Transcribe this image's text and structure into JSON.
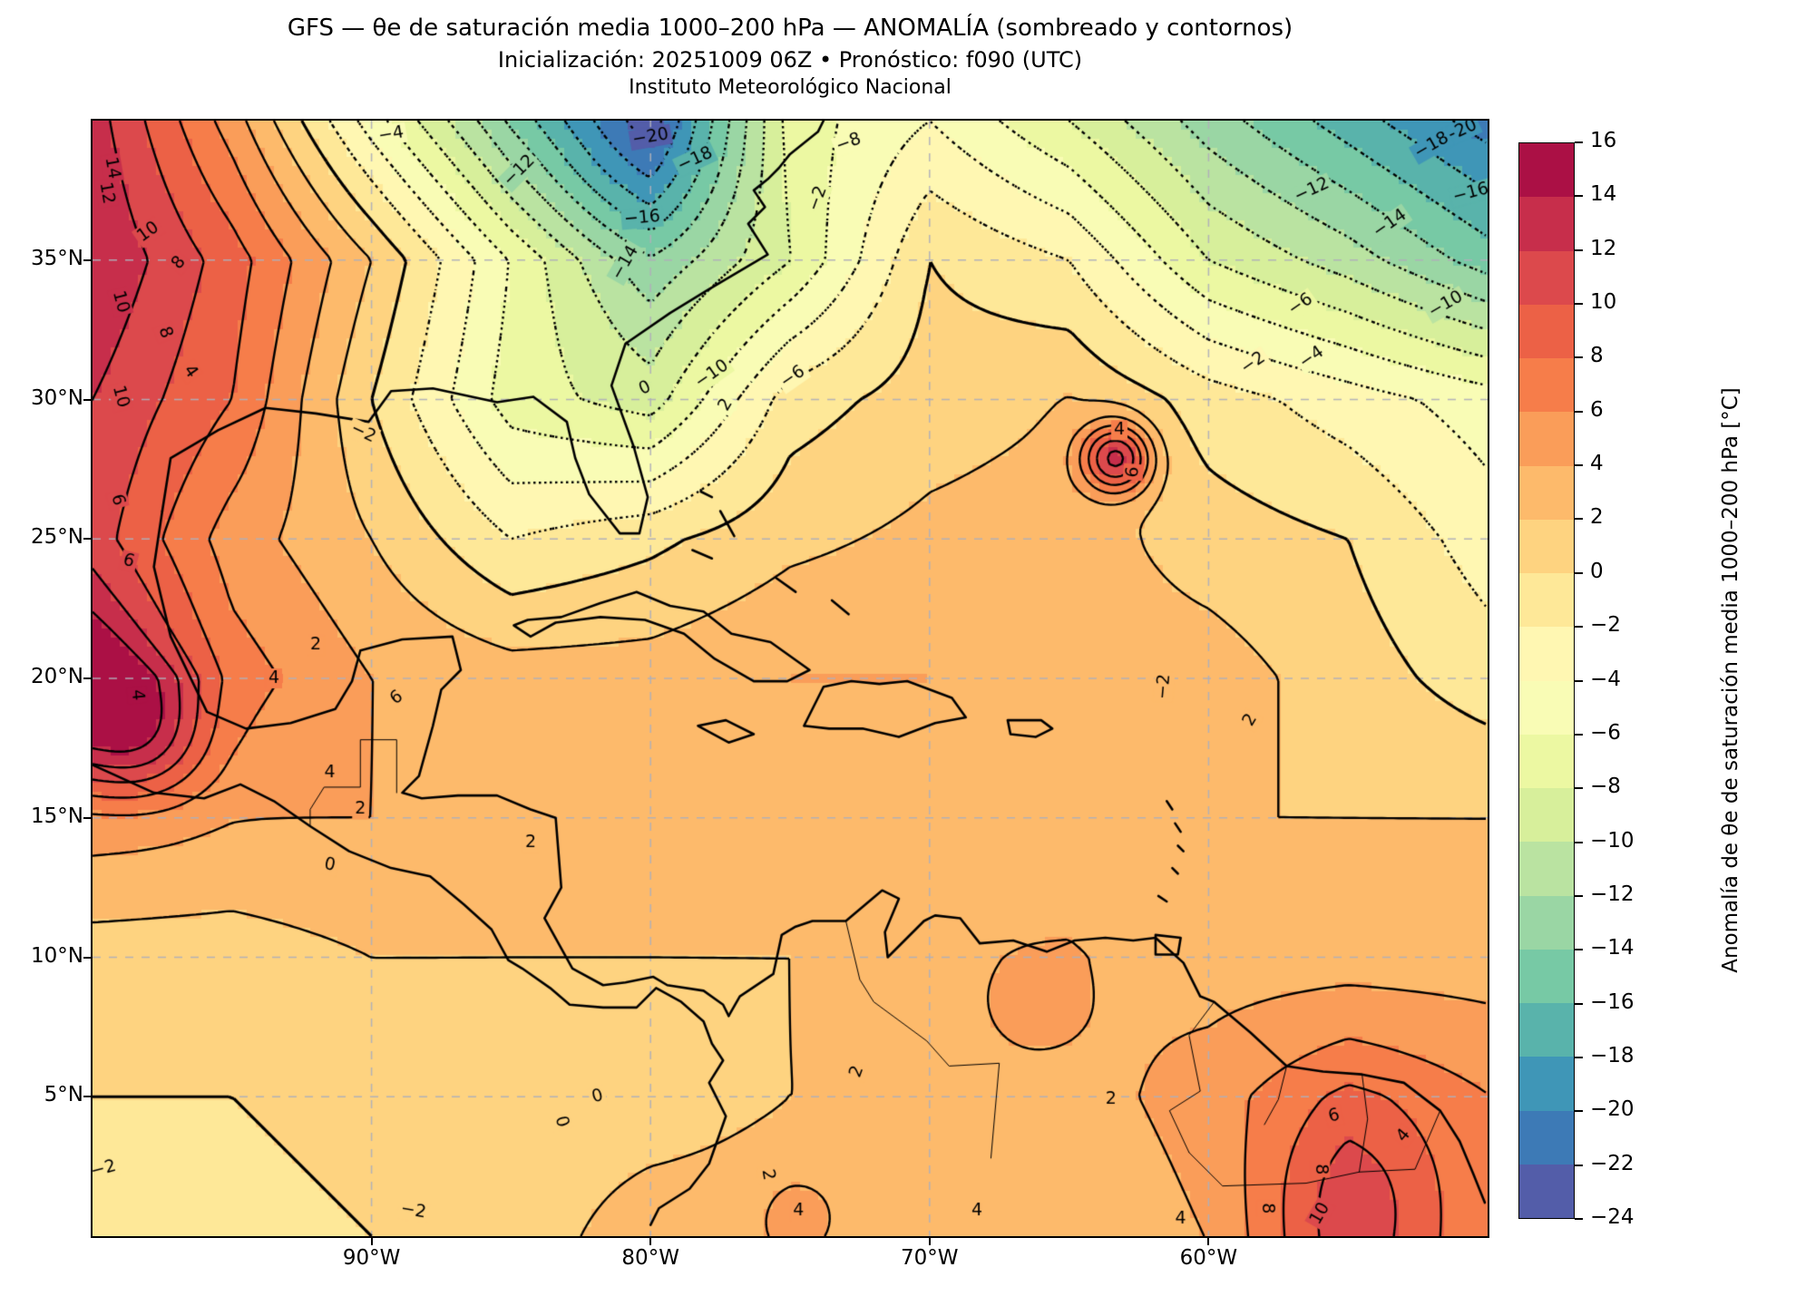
{
  "title": {
    "line1": "GFS — θe de saturación media 1000–200 hPa — ANOMALÍA (sombreado y contornos)",
    "line2": "Inicialización: 20251009 06Z   •   Pronóstico: f090 (UTC)",
    "line3": "Instituto Meteorológico Nacional"
  },
  "axes": {
    "y_ticks": [
      {
        "label": "35°N",
        "lat": 35
      },
      {
        "label": "30°N",
        "lat": 30
      },
      {
        "label": "25°N",
        "lat": 25
      },
      {
        "label": "20°N",
        "lat": 20
      },
      {
        "label": "15°N",
        "lat": 15
      },
      {
        "label": "10°N",
        "lat": 10
      },
      {
        "label": "5°N",
        "lat": 5
      }
    ],
    "x_ticks": [
      {
        "label": "90°W",
        "lon": -90
      },
      {
        "label": "80°W",
        "lon": -80
      },
      {
        "label": "70°W",
        "lon": -70
      },
      {
        "label": "60°W",
        "lon": -60
      }
    ]
  },
  "colorbar": {
    "label": "Anomalía de θe de saturación media 1000–200 hPa [°C]",
    "min": -24,
    "max": 16,
    "step": 2,
    "tick_values": [
      16,
      14,
      12,
      10,
      8,
      6,
      4,
      2,
      0,
      -2,
      -4,
      -6,
      -8,
      -10,
      -12,
      -14,
      -16,
      -18,
      -20,
      -22,
      -24
    ],
    "segment_colors_low_to_high": [
      "#535DA9",
      "#3D7AB6",
      "#3F96B7",
      "#59B3AB",
      "#77C9A5",
      "#9AD6A4",
      "#BAE3A1",
      "#D7EF9B",
      "#ECF8A2",
      "#F9FCB5",
      "#FFF7B2",
      "#FEE898",
      "#FED380",
      "#FDBA6B",
      "#FA9D59",
      "#F67D4A",
      "#EC6146",
      "#DC494C",
      "#C72E4B",
      "#AB1045"
    ]
  },
  "chart_data": {
    "type": "heatmap",
    "title": "GFS — θe de saturación media 1000–200 hPa — ANOMALÍA (sombreado y contornos)",
    "units": "°C",
    "model": "GFS",
    "initialization": "20251009 06Z",
    "forecast_hour": "f090 (UTC)",
    "source": "Instituto Meteorológico Nacional",
    "lon_range": [
      -100,
      -50
    ],
    "lat_range": [
      0,
      40
    ],
    "value_range": [
      -24,
      16
    ],
    "contour_interval": 2,
    "grid": {
      "lons": [
        -100,
        -95,
        -90,
        -85,
        -80,
        -75,
        -70,
        -65,
        -60,
        -55,
        -50
      ],
      "lats": [
        40,
        35,
        30,
        25,
        20,
        15,
        10,
        5,
        0
      ],
      "values": [
        [
          13,
          5,
          -5,
          -14,
          -21,
          -7,
          -4,
          -8,
          -13,
          -17,
          -21
        ],
        [
          14,
          9,
          2,
          -6,
          -13,
          -8,
          0,
          -2,
          -8,
          -11,
          -15
        ],
        [
          12,
          8,
          0,
          -7,
          -9,
          -1,
          1,
          2,
          -1,
          -3,
          -5
        ],
        [
          11,
          5,
          2,
          -2,
          -0.5,
          1.5,
          2.5,
          3,
          1,
          0,
          -3
        ],
        [
          15,
          7,
          4,
          3,
          3,
          4,
          4,
          3,
          3,
          1,
          -1
        ],
        [
          5,
          4,
          4,
          3,
          3,
          3,
          3,
          3,
          2,
          2,
          2
        ],
        [
          1,
          1,
          2,
          2,
          2,
          2,
          3,
          4,
          3,
          3,
          3
        ],
        [
          0,
          0,
          1,
          1,
          1,
          2,
          2,
          3,
          5,
          8,
          6
        ],
        [
          -1,
          -1,
          0,
          1,
          3,
          3,
          2,
          2,
          4,
          10,
          6
        ]
      ]
    },
    "features": [
      {
        "name": "tropical-cyclone",
        "lon": -63.3,
        "lat": 27.9,
        "amplitude": 11,
        "radius_deg": 0.9
      },
      {
        "name": "mexico-hotspot",
        "lon": -98.2,
        "lat": 17.9,
        "amplitude": 5,
        "radius_deg": 1.6
      },
      {
        "name": "west-edge-hotspot",
        "lon": -100.6,
        "lat": 19.6,
        "amplitude": 3,
        "radius_deg": 1.8
      },
      {
        "name": "midatlantic-cold-core",
        "lon": -80.5,
        "lat": 38.8,
        "amplitude": -2.5,
        "radius_deg": 2.5
      },
      {
        "name": "south-america-hotspot",
        "lon": -54.6,
        "lat": 1.6,
        "amplitude": 2,
        "radius_deg": 2.2
      },
      {
        "name": "colombia-spot",
        "lon": -74.6,
        "lat": 0.8,
        "amplitude": 2,
        "radius_deg": 1.2
      },
      {
        "name": "venezuela-spot",
        "lon": -66.4,
        "lat": 8.2,
        "amplitude": 2,
        "radius_deg": 1.2
      }
    ],
    "gridlines": {
      "lats": [
        35,
        30,
        25,
        20,
        15,
        10,
        5
      ],
      "lons": [
        -90,
        -80,
        -70,
        -60
      ]
    },
    "contour_labels": [
      [
        14,
        -99.3,
        38.3,
        80
      ],
      [
        12,
        -99.5,
        37.4,
        80
      ],
      [
        10,
        -98.0,
        36.0,
        -35
      ],
      [
        8,
        -96.9,
        34.9,
        -50
      ],
      [
        10,
        -99.0,
        33.5,
        75
      ],
      [
        8,
        -97.4,
        32.4,
        70
      ],
      [
        4,
        -96.5,
        31.0,
        55
      ],
      [
        10,
        -99.0,
        30.1,
        75
      ],
      [
        6,
        -99.1,
        26.4,
        75
      ],
      [
        6,
        -98.7,
        24.2,
        15
      ],
      [
        4,
        -98.4,
        19.4,
        85
      ],
      [
        4,
        -93.5,
        20.0,
        0
      ],
      [
        6,
        -89.1,
        19.3,
        -35
      ],
      [
        2,
        -92.0,
        21.2,
        0
      ],
      [
        4,
        -91.5,
        16.6,
        0
      ],
      [
        2,
        -90.4,
        15.3,
        0
      ],
      [
        0,
        -91.5,
        13.3,
        10
      ],
      [
        2,
        -84.3,
        14.1,
        0
      ],
      [
        0,
        -80.2,
        30.4,
        -25
      ],
      [
        2,
        -77.3,
        29.8,
        -60
      ],
      [
        0,
        -81.9,
        5.0,
        -15
      ],
      [
        0,
        -83.2,
        4.1,
        75
      ],
      [
        2,
        -72.6,
        5.9,
        -70
      ],
      [
        2,
        -75.8,
        2.2,
        80
      ],
      [
        4,
        -74.7,
        0.9,
        0
      ],
      [
        4,
        -68.3,
        0.9,
        0
      ],
      [
        2,
        -63.5,
        4.9,
        0
      ],
      [
        6,
        -55.5,
        4.3,
        -15
      ],
      [
        4,
        -53.0,
        3.6,
        -50
      ],
      [
        8,
        -56.0,
        2.4,
        90
      ],
      [
        10,
        -56.0,
        0.8,
        -60
      ],
      [
        8,
        -57.9,
        1.0,
        90
      ],
      [
        4,
        -61.0,
        0.6,
        0
      ],
      [
        4,
        -63.2,
        28.9,
        0
      ],
      [
        6,
        -62.7,
        27.4,
        -85
      ],
      [
        2,
        -58.5,
        18.5,
        -60
      ],
      [
        -20,
        -80.0,
        39.4,
        -10
      ],
      [
        -18,
        -78.4,
        38.6,
        -25
      ],
      [
        -16,
        -80.3,
        36.5,
        -5
      ],
      [
        -14,
        -80.9,
        34.9,
        -60
      ],
      [
        -12,
        -84.7,
        38.2,
        -45
      ],
      [
        -10,
        -77.8,
        30.9,
        -35
      ],
      [
        -6,
        -74.9,
        30.8,
        -35
      ],
      [
        -8,
        -72.9,
        39.2,
        -20
      ],
      [
        -2,
        -74.0,
        37.2,
        -70
      ],
      [
        -4,
        -89.3,
        39.5,
        -10
      ],
      [
        -2,
        -90.3,
        28.8,
        25
      ],
      [
        -20,
        -51.0,
        39.6,
        -25
      ],
      [
        -18,
        -52.0,
        39.1,
        -30
      ],
      [
        -16,
        -50.6,
        37.4,
        -15
      ],
      [
        -14,
        -53.5,
        36.3,
        -35
      ],
      [
        -12,
        -56.3,
        37.5,
        -25
      ],
      [
        -10,
        -51.5,
        33.4,
        -30
      ],
      [
        -6,
        -56.7,
        33.4,
        -35
      ],
      [
        -4,
        -56.3,
        31.5,
        -35
      ],
      [
        -2,
        -58.4,
        31.3,
        -35
      ],
      [
        -2,
        -61.6,
        19.7,
        -85
      ],
      [
        -2,
        -99.9,
        2.4,
        -15
      ],
      [
        -2,
        -88.5,
        0.9,
        10
      ]
    ]
  }
}
